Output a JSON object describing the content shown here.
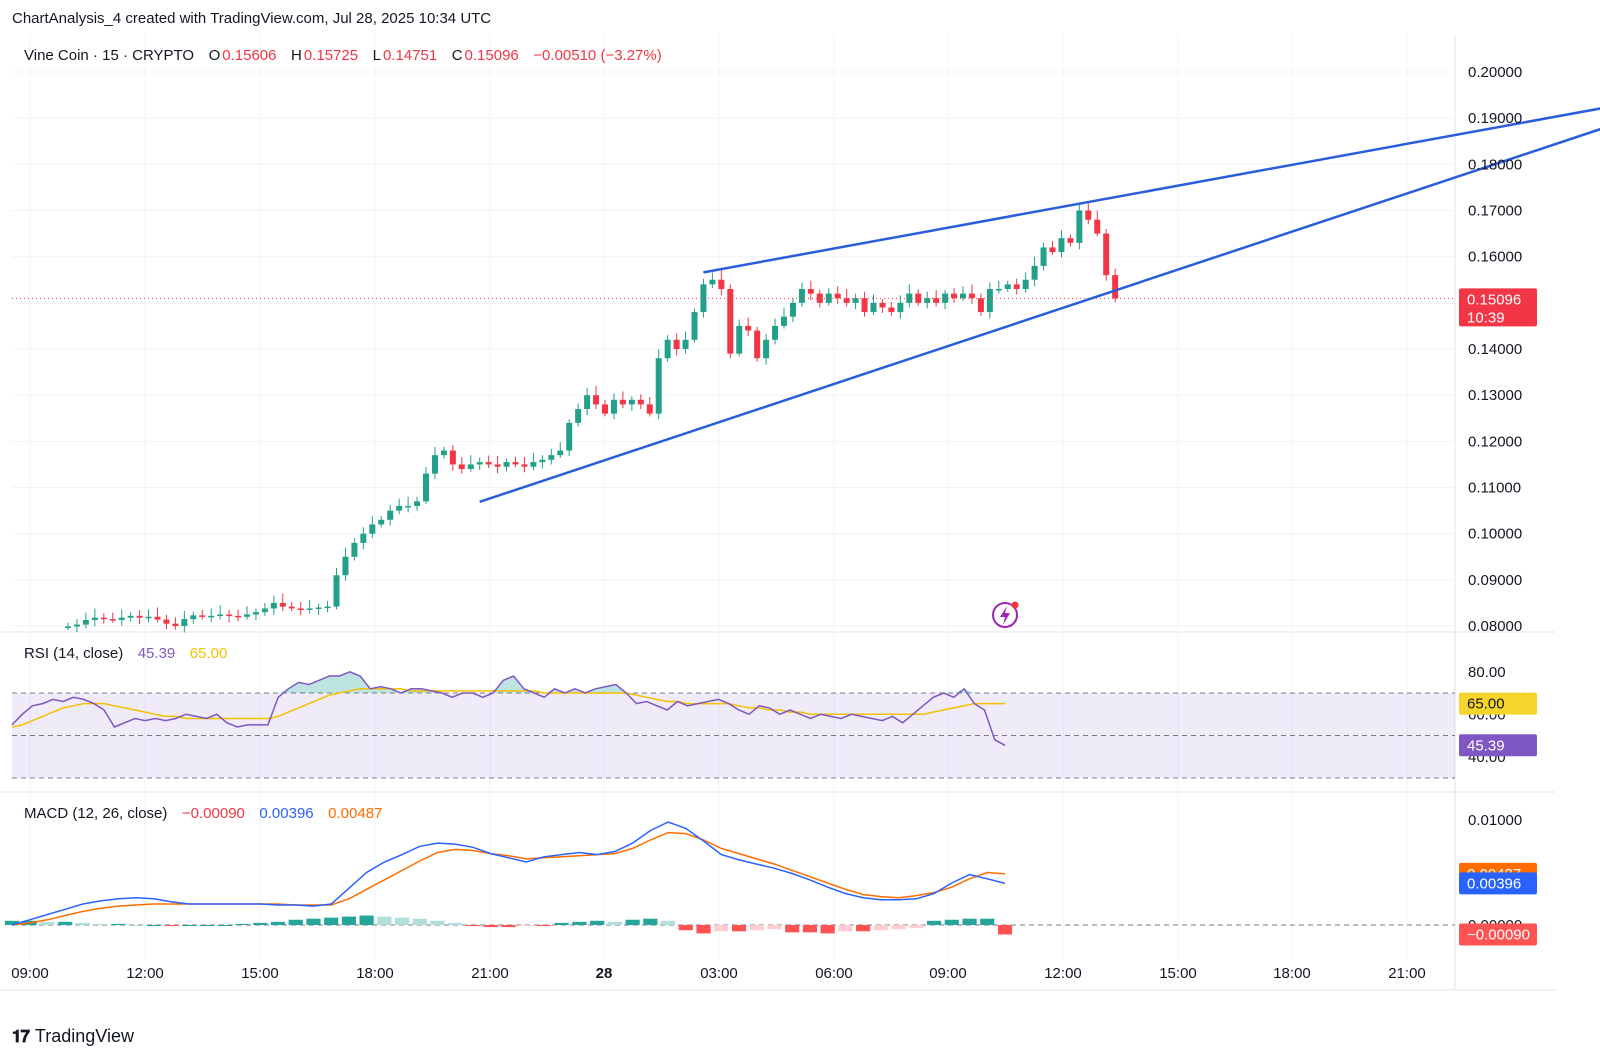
{
  "attribution": "ChartAnalysis_4 created with TradingView.com, Jul 28, 2025 10:34 UTC",
  "brand": {
    "name": "TradingView",
    "logo_icon": "tradingview-logo-icon"
  },
  "colors": {
    "up": "#22a08a",
    "down": "#f23645",
    "trend": "#2a5ddb",
    "rsi": "#7e57c2",
    "rsi_ma": "#f5c000",
    "macd": "#2962ff",
    "signal": "#ff6d00",
    "hist_up_strong": "#26a69a",
    "hist_up_weak": "#b2dfdb",
    "hist_down_strong": "#ff5252",
    "hist_down_weak": "#ffcdd2"
  },
  "legend": {
    "symbol": "Vine Coin · 15 · CRYPTO",
    "o_label": "O",
    "o_value": "0.15606",
    "h_label": "H",
    "h_value": "0.15725",
    "l_label": "L",
    "l_value": "0.14751",
    "c_label": "C",
    "c_value": "0.15096",
    "change": "−0.00510 (−3.27%)"
  },
  "rsi_legend": {
    "name": "RSI (14, close)",
    "value": "45.39",
    "ma_value": "65.00"
  },
  "macd_legend": {
    "name": "MACD (12, 26, close)",
    "hist": "−0.00090",
    "macd": "0.00396",
    "signal": "0.00487"
  },
  "price_badge": {
    "price": "0.15096",
    "countdown": "10:39"
  },
  "rsi_badges": {
    "ma": "65.00",
    "rsi": "45.39"
  },
  "macd_badges": {
    "signal": "0.00487",
    "macd": "0.00396",
    "hist": "−0.00090"
  },
  "chart_data": [
    {
      "type": "candlestick",
      "title": "Vine Coin · 15 · CRYPTO",
      "interval_minutes": 15,
      "x_ticks": [
        "09:00",
        "12:00",
        "15:00",
        "18:00",
        "21:00",
        "28",
        "03:00",
        "06:00",
        "09:00",
        "12:00",
        "15:00",
        "18:00",
        "21:00"
      ],
      "y_ticks": [
        "0.20000",
        "0.19000",
        "0.18000",
        "0.17000",
        "0.16000",
        "0.14000",
        "0.13000",
        "0.12000",
        "0.11000",
        "0.10000",
        "0.09000",
        "0.08000"
      ],
      "ylim": [
        0.0784,
        0.2038
      ],
      "last_price": 0.15096,
      "closes": [
        0.0799,
        0.0803,
        0.0813,
        0.0818,
        0.0815,
        0.0813,
        0.0818,
        0.0822,
        0.0818,
        0.082,
        0.0814,
        0.0805,
        0.08,
        0.0815,
        0.0823,
        0.082,
        0.0822,
        0.0825,
        0.0822,
        0.082,
        0.0825,
        0.083,
        0.0838,
        0.085,
        0.0842,
        0.0838,
        0.0835,
        0.0838,
        0.084,
        0.0842,
        0.091,
        0.095,
        0.098,
        0.1,
        0.102,
        0.103,
        0.105,
        0.106,
        0.106,
        0.107,
        0.113,
        0.117,
        0.118,
        0.115,
        0.114,
        0.115,
        0.1155,
        0.115,
        0.1145,
        0.1155,
        0.115,
        0.1145,
        0.1155,
        0.116,
        0.117,
        0.118,
        0.124,
        0.127,
        0.13,
        0.128,
        0.126,
        0.129,
        0.128,
        0.129,
        0.128,
        0.126,
        0.138,
        0.142,
        0.14,
        0.142,
        0.148,
        0.154,
        0.155,
        0.153,
        0.139,
        0.145,
        0.144,
        0.138,
        0.142,
        0.145,
        0.147,
        0.15,
        0.153,
        0.152,
        0.15,
        0.152,
        0.151,
        0.15,
        0.151,
        0.148,
        0.15,
        0.149,
        0.148,
        0.15,
        0.152,
        0.15,
        0.151,
        0.15,
        0.152,
        0.151,
        0.152,
        0.151,
        0.148,
        0.153,
        0.153,
        0.154,
        0.153,
        0.155,
        0.158,
        0.162,
        0.161,
        0.164,
        0.163,
        0.17,
        0.168,
        0.165,
        0.156,
        0.15096
      ],
      "opens_first": 0.0797,
      "trendlines": [
        {
          "name": "upper",
          "from_index": 71,
          "from_price": 0.1566,
          "to_index": 178,
          "to_price": 0.1945
        },
        {
          "name": "lower",
          "from_index": 46,
          "from_price": 0.1069,
          "to_index": 178,
          "to_price": 0.192
        }
      ]
    },
    {
      "type": "line",
      "title": "RSI (14, close)",
      "y_ticks": [
        "80.00",
        "60.00",
        "40.00"
      ],
      "bands": [
        70,
        50,
        30
      ],
      "series": [
        {
          "name": "RSI",
          "values": [
            55,
            60,
            64,
            65,
            67,
            66,
            68,
            67,
            65,
            62,
            54,
            56,
            58,
            57,
            58,
            57,
            58,
            60,
            59,
            58,
            60,
            56,
            54,
            55,
            55,
            55,
            68,
            72,
            75,
            74,
            76,
            78,
            78,
            80,
            78,
            72,
            73,
            72,
            70,
            72,
            72,
            71,
            70,
            68,
            70,
            70,
            68,
            70,
            76,
            78,
            72,
            70,
            68,
            72,
            70,
            72,
            70,
            72,
            73,
            74,
            70,
            65,
            66,
            64,
            62,
            66,
            64,
            65,
            66,
            67,
            65,
            62,
            60,
            64,
            63,
            60,
            62,
            60,
            58,
            60,
            59,
            58,
            60,
            59,
            58,
            57,
            59,
            56,
            60,
            64,
            68,
            70,
            68,
            72,
            65,
            62,
            48,
            45.39
          ]
        },
        {
          "name": "RSI MA",
          "values": [
            54,
            55,
            57,
            59,
            61,
            63,
            64,
            65,
            65,
            65,
            64,
            63,
            62,
            61,
            60,
            59,
            59,
            58,
            58,
            58,
            58,
            58,
            58,
            58,
            58,
            58,
            59,
            61,
            63,
            65,
            67,
            69,
            70,
            71,
            72,
            72,
            72,
            72,
            72,
            71,
            71,
            71,
            71,
            71,
            71,
            71,
            71,
            71,
            71,
            71,
            71,
            71,
            70,
            70,
            70,
            70,
            70,
            70,
            70,
            70,
            70,
            69,
            68,
            67,
            66,
            66,
            65,
            65,
            65,
            65,
            65,
            64,
            63,
            63,
            62,
            62,
            61,
            61,
            60,
            60,
            60,
            60,
            60,
            60,
            60,
            60,
            60,
            60,
            60,
            60,
            61,
            62,
            63,
            64,
            65,
            65,
            65,
            65
          ]
        }
      ]
    },
    {
      "type": "line+bar",
      "title": "MACD (12, 26, close)",
      "y_ticks": [
        "0.01000",
        "0.00000"
      ],
      "series": [
        {
          "name": "MACD",
          "values": [
            0.0,
            0.0005,
            0.001,
            0.0015,
            0.002,
            0.0023,
            0.0025,
            0.0026,
            0.0025,
            0.0022,
            0.002,
            0.002,
            0.002,
            0.002,
            0.002,
            0.0019,
            0.0019,
            0.0018,
            0.002,
            0.0035,
            0.005,
            0.006,
            0.0067,
            0.0075,
            0.0078,
            0.0077,
            0.0074,
            0.0068,
            0.0064,
            0.006,
            0.0065,
            0.0067,
            0.0069,
            0.0067,
            0.007,
            0.0078,
            0.009,
            0.0098,
            0.0092,
            0.008,
            0.0067,
            0.0062,
            0.0058,
            0.0054,
            0.0049,
            0.0043,
            0.0036,
            0.003,
            0.0026,
            0.0024,
            0.0024,
            0.0025,
            0.003,
            0.004,
            0.0048,
            0.0044,
            0.00396
          ]
        },
        {
          "name": "Signal",
          "values": [
            0.0,
            0.0002,
            0.0005,
            0.0009,
            0.0013,
            0.0016,
            0.0018,
            0.0019,
            0.002,
            0.002,
            0.002,
            0.002,
            0.002,
            0.002,
            0.002,
            0.002,
            0.0019,
            0.0019,
            0.0019,
            0.0025,
            0.0034,
            0.0043,
            0.0052,
            0.0061,
            0.0069,
            0.0072,
            0.0071,
            0.0068,
            0.0066,
            0.0063,
            0.0064,
            0.0065,
            0.0066,
            0.0067,
            0.0068,
            0.0073,
            0.0081,
            0.0088,
            0.0087,
            0.0081,
            0.0073,
            0.0068,
            0.0063,
            0.0058,
            0.0052,
            0.0046,
            0.004,
            0.0034,
            0.0029,
            0.0027,
            0.0026,
            0.0028,
            0.0031,
            0.0036,
            0.0044,
            0.005,
            0.00487
          ]
        },
        {
          "name": "Histogram",
          "values": [
            0.0004,
            0.0004,
            0.0003,
            0.0003,
            0.0002,
            0.0001,
            0.0001,
            0.0,
            0.0,
            -0.0001,
            0.0,
            0.0,
            0.0,
            0.0001,
            0.0002,
            0.0003,
            0.0005,
            0.0006,
            0.0007,
            0.0008,
            0.0009,
            0.0008,
            0.0007,
            0.0006,
            0.0004,
            0.0002,
            -0.0001,
            -0.0002,
            -0.0002,
            -0.0001,
            -0.0001,
            0.0002,
            0.0003,
            0.0004,
            0.0003,
            0.0005,
            0.0006,
            0.0004,
            -0.0005,
            -0.0008,
            -0.0006,
            -0.0006,
            -0.0005,
            -0.0004,
            -0.0007,
            -0.0007,
            -0.0008,
            -0.0006,
            -0.0006,
            -0.0005,
            -0.0004,
            -0.0003,
            0.0004,
            0.0005,
            0.0006,
            0.0006,
            -0.0009
          ]
        }
      ]
    }
  ]
}
